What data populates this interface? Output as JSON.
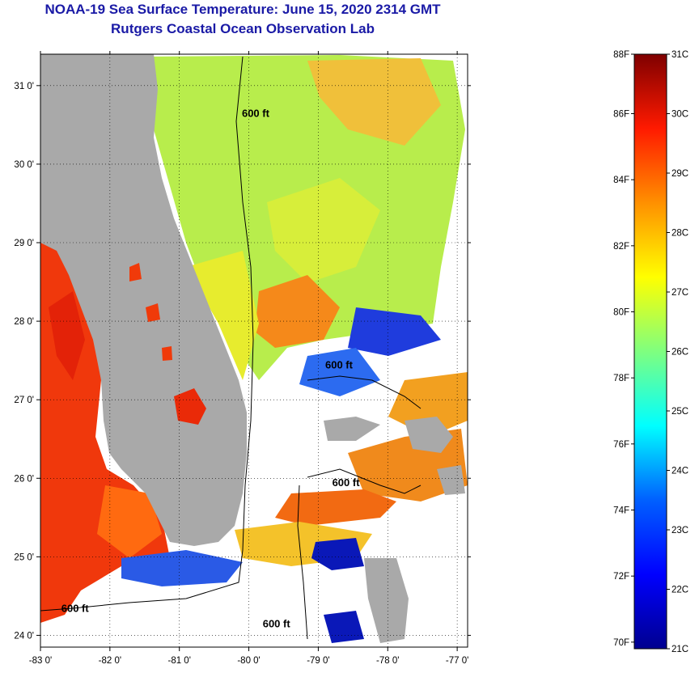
{
  "title": {
    "line1": "NOAA-19 Sea Surface Temperature:  June 15, 2020 2314 GMT",
    "line2": "Rutgers Coastal Ocean Observation Lab"
  },
  "map": {
    "lon_range": [
      -83.0,
      -76.85
    ],
    "lat_range": [
      23.85,
      31.4
    ],
    "lon_ticks": [
      "-83 0'",
      "-82 0'",
      "-81 0'",
      "-80 0'",
      "-79 0'",
      "-78 0'",
      "-77 0'"
    ],
    "lon_tick_values": [
      -83,
      -82,
      -81,
      -80,
      -79,
      -78,
      -77
    ],
    "lat_ticks": [
      "24 0'",
      "25 0'",
      "26 0'",
      "27 0'",
      "28 0'",
      "29 0'",
      "30 0'",
      "31 0'"
    ],
    "lat_tick_values": [
      24,
      25,
      26,
      27,
      28,
      29,
      30,
      31
    ],
    "contour_labels": [
      {
        "text": "600 ft",
        "lon": -80.1,
        "lat": 30.6
      },
      {
        "text": "600 ft",
        "lon": -78.9,
        "lat": 27.4
      },
      {
        "text": "600 ft",
        "lon": -78.8,
        "lat": 25.9
      },
      {
        "text": "600 ft",
        "lon": -82.7,
        "lat": 24.3
      },
      {
        "text": "600 ft",
        "lon": -79.8,
        "lat": 24.1
      }
    ]
  },
  "colorbar": {
    "f_labels": [
      "88F",
      "86F",
      "84F",
      "82F",
      "80F",
      "78F",
      "76F",
      "74F",
      "72F",
      "70F"
    ],
    "f_values": [
      88,
      86,
      84,
      82,
      80,
      78,
      76,
      74,
      72,
      70
    ],
    "c_labels": [
      "31C",
      "30C",
      "29C",
      "28C",
      "27C",
      "26C",
      "25C",
      "24C",
      "23C",
      "22C",
      "21C"
    ],
    "c_values": [
      31,
      30,
      29,
      28,
      27,
      26,
      25,
      24,
      23,
      22,
      21
    ],
    "range_c": [
      21,
      31
    ]
  },
  "colors": {
    "title": "#1a1aa6",
    "land": "#a9a9a9",
    "cloud": "#ffffff",
    "cold": "#00008f",
    "hot": "#7f0000"
  }
}
